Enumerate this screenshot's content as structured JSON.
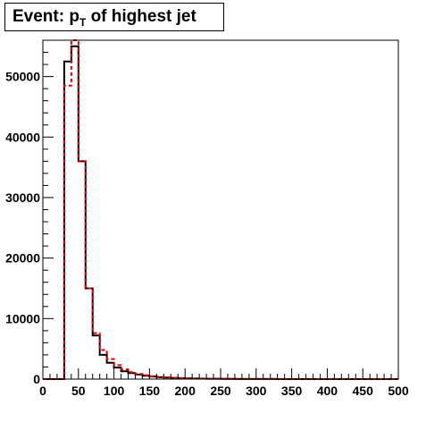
{
  "title": {
    "prefix": "Event: p",
    "subscript": "T",
    "suffix": " of highest jet"
  },
  "colors": {
    "series_black": "#000000",
    "series_red": "#e00000"
  },
  "chart_data": {
    "type": "histogram",
    "title": "Event: p_T of highest jet",
    "xlabel": "",
    "ylabel": "",
    "xlim": [
      0,
      500
    ],
    "ylim": [
      0,
      56000
    ],
    "grid": false,
    "bin_width": 10,
    "x_ticks": [
      0,
      50,
      100,
      150,
      200,
      250,
      300,
      350,
      400,
      450,
      500
    ],
    "x_tick_labels": [
      "0",
      "50",
      "100",
      "150",
      "200",
      "250",
      "300",
      "350",
      "400",
      "450",
      "500"
    ],
    "y_ticks": [
      0,
      10000,
      20000,
      30000,
      40000,
      50000
    ],
    "y_tick_labels": [
      "0",
      "10000",
      "20000",
      "30000",
      "40000",
      "50000"
    ],
    "series": [
      {
        "style": "solid",
        "color": "#000000",
        "values": [
          0,
          0,
          0,
          52500,
          55000,
          36000,
          15000,
          7200,
          4000,
          2700,
          1900,
          1300,
          1000,
          750,
          550,
          420,
          320,
          250,
          190,
          150,
          120,
          95,
          75,
          60,
          48,
          40,
          32,
          26,
          21,
          17,
          14,
          12,
          10,
          8,
          7,
          6,
          5,
          4,
          4,
          3,
          3,
          2,
          2,
          2,
          1,
          1,
          1,
          1,
          1,
          1
        ]
      },
      {
        "style": "dashed",
        "color": "#e00000",
        "values": [
          0,
          0,
          0,
          48500,
          56000,
          36000,
          15000,
          7600,
          4800,
          3300,
          2300,
          1600,
          1150,
          850,
          620,
          460,
          350,
          270,
          200,
          160,
          125,
          100,
          78,
          62,
          50,
          41,
          33,
          27,
          22,
          18,
          15,
          12,
          10,
          8,
          7,
          6,
          5,
          4,
          4,
          3,
          3,
          2,
          2,
          2,
          1,
          1,
          1,
          1,
          1,
          1
        ]
      }
    ]
  }
}
